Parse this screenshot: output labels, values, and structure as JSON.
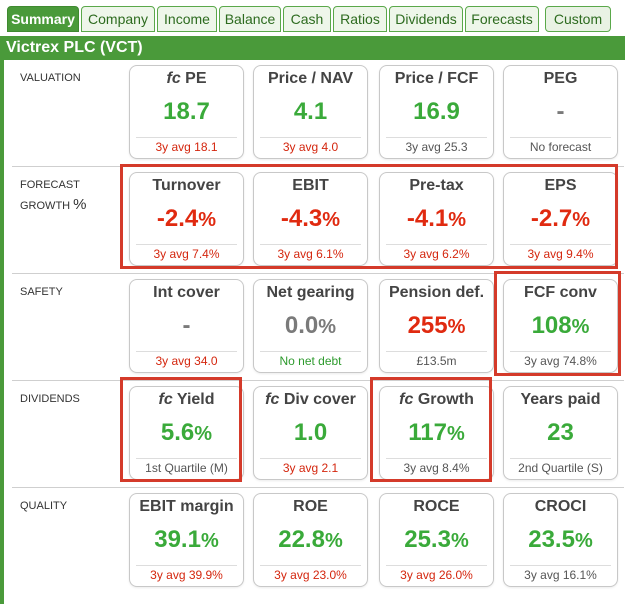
{
  "tabs": [
    "Summary",
    "Company",
    "Income",
    "Balance",
    "Cash",
    "Ratios",
    "Dividends",
    "Forecasts"
  ],
  "custom_tab": "Custom",
  "title": "Victrex PLC (VCT)",
  "colors": {
    "accent": "#4a9a3a",
    "highlight": "#d43a2a",
    "positive": "#3aaa3a",
    "negative": "#e02a10"
  },
  "sections": [
    {
      "label": "VALUATION",
      "cards": [
        {
          "prefix": "fc",
          "name": "PE",
          "value": "18.7",
          "unit": "",
          "value_color": "green",
          "sub": "3y avg 18.1",
          "sub_color": "red"
        },
        {
          "prefix": "",
          "name": "Price / NAV",
          "value": "4.1",
          "unit": "",
          "value_color": "green",
          "sub": "3y avg 4.0",
          "sub_color": "red"
        },
        {
          "prefix": "",
          "name": "Price / FCF",
          "value": "16.9",
          "unit": "",
          "value_color": "green",
          "sub": "3y avg 25.3",
          "sub_color": "gray"
        },
        {
          "prefix": "",
          "name": "PEG",
          "value": "-",
          "unit": "",
          "value_color": "gray",
          "sub": "No forecast",
          "sub_color": "gray"
        }
      ]
    },
    {
      "label": "FORECAST",
      "label2": "GROWTH",
      "label_pct": "%",
      "cards": [
        {
          "prefix": "",
          "name": "Turnover",
          "value": "-2.4",
          "unit": "%",
          "value_color": "red",
          "sub": "3y avg 7.4%",
          "sub_color": "red"
        },
        {
          "prefix": "",
          "name": "EBIT",
          "value": "-4.3",
          "unit": "%",
          "value_color": "red",
          "sub": "3y avg 6.1%",
          "sub_color": "red"
        },
        {
          "prefix": "",
          "name": "Pre-tax",
          "value": "-4.1",
          "unit": "%",
          "value_color": "red",
          "sub": "3y avg 6.2%",
          "sub_color": "red"
        },
        {
          "prefix": "",
          "name": "EPS",
          "value": "-2.7",
          "unit": "%",
          "value_color": "red",
          "sub": "3y avg 9.4%",
          "sub_color": "red"
        }
      ]
    },
    {
      "label": "SAFETY",
      "cards": [
        {
          "prefix": "",
          "name": "Int cover",
          "value": "-",
          "unit": "",
          "value_color": "gray",
          "sub": "3y avg 34.0",
          "sub_color": "red"
        },
        {
          "prefix": "",
          "name": "Net gearing",
          "value": "0.0",
          "unit": "%",
          "value_color": "gray",
          "sub": "No net debt",
          "sub_color": "green"
        },
        {
          "prefix": "",
          "name": "Pension def.",
          "value": "255",
          "unit": "%",
          "value_color": "red",
          "sub": "£13.5m",
          "sub_color": "gray"
        },
        {
          "prefix": "",
          "name": "FCF conv",
          "value": "108",
          "unit": "%",
          "value_color": "green",
          "sub": "3y avg 74.8%",
          "sub_color": "gray"
        }
      ]
    },
    {
      "label": "DIVIDENDS",
      "cards": [
        {
          "prefix": "fc",
          "name": "Yield",
          "value": "5.6",
          "unit": "%",
          "value_color": "green",
          "sub": "1st Quartile (M)",
          "sub_color": "gray"
        },
        {
          "prefix": "fc",
          "name": "Div cover",
          "value": "1.0",
          "unit": "",
          "value_color": "green",
          "sub": "3y avg 2.1",
          "sub_color": "red"
        },
        {
          "prefix": "fc",
          "name": "Growth",
          "value": "117",
          "unit": "%",
          "value_color": "green",
          "sub": "3y avg 8.4%",
          "sub_color": "gray"
        },
        {
          "prefix": "",
          "name": "Years paid",
          "value": "23",
          "unit": "",
          "value_color": "green",
          "sub": "2nd Quartile (S)",
          "sub_color": "gray"
        }
      ]
    },
    {
      "label": "QUALITY",
      "cards": [
        {
          "prefix": "",
          "name": "EBIT margin",
          "value": "39.1",
          "unit": "%",
          "value_color": "green",
          "sub": "3y avg 39.9%",
          "sub_color": "red"
        },
        {
          "prefix": "",
          "name": "ROE",
          "value": "22.8",
          "unit": "%",
          "value_color": "green",
          "sub": "3y avg 23.0%",
          "sub_color": "red"
        },
        {
          "prefix": "",
          "name": "ROCE",
          "value": "25.3",
          "unit": "%",
          "value_color": "green",
          "sub": "3y avg 26.0%",
          "sub_color": "red"
        },
        {
          "prefix": "",
          "name": "CROCI",
          "value": "23.5",
          "unit": "%",
          "value_color": "green",
          "sub": "3y avg 16.1%",
          "sub_color": "gray"
        }
      ]
    }
  ]
}
